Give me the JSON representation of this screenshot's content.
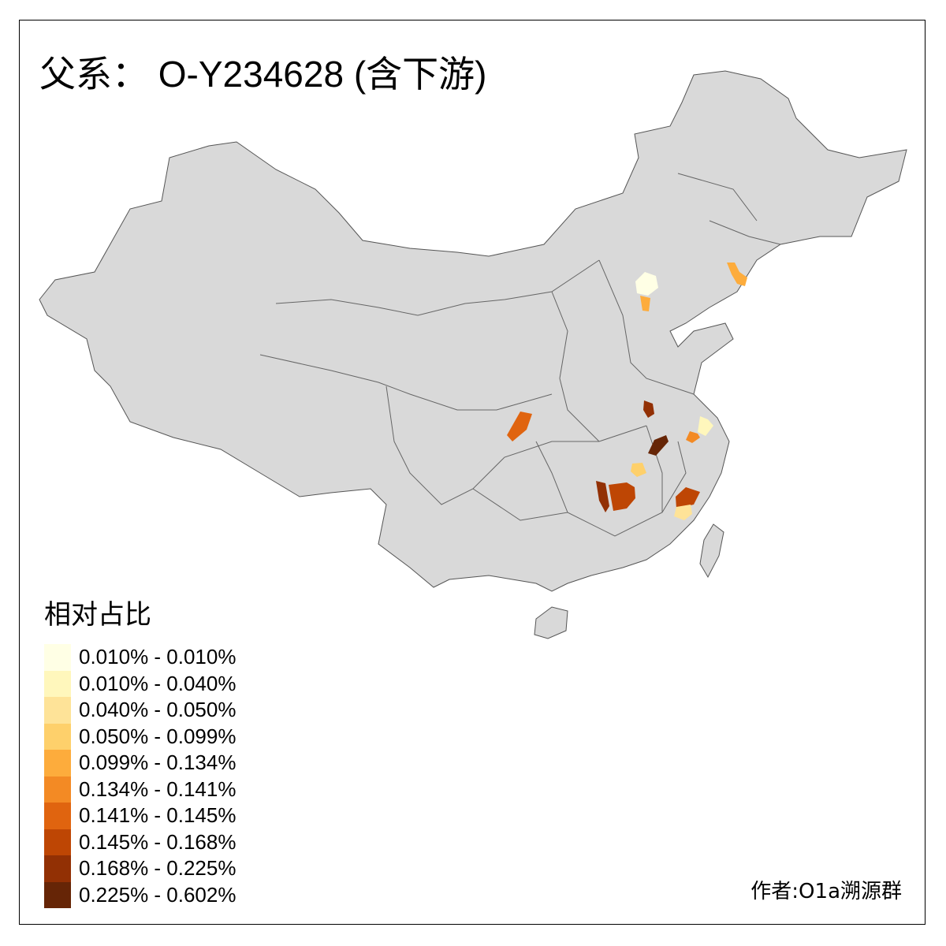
{
  "title": "父系： O-Y234628 (含下游)",
  "legend": {
    "title": "相对占比",
    "items": [
      {
        "label": "0.010% - 0.010%",
        "color": "#FFFFE5"
      },
      {
        "label": "0.010% - 0.040%",
        "color": "#FFF7BC"
      },
      {
        "label": "0.040% - 0.050%",
        "color": "#FEE398"
      },
      {
        "label": "0.050% - 0.099%",
        "color": "#FED06B"
      },
      {
        "label": "0.099% - 0.134%",
        "color": "#FDAC3C"
      },
      {
        "label": "0.134% - 0.141%",
        "color": "#F38A24"
      },
      {
        "label": "0.141% - 0.145%",
        "color": "#E0640F"
      },
      {
        "label": "0.145% - 0.168%",
        "color": "#BE4604"
      },
      {
        "label": "0.168% - 0.225%",
        "color": "#923004"
      },
      {
        "label": "0.225% - 0.602%",
        "color": "#662506"
      }
    ]
  },
  "map": {
    "base_color": "#D9D9D9",
    "border_color": "#666666"
  },
  "author": "作者:O1a溯源群"
}
